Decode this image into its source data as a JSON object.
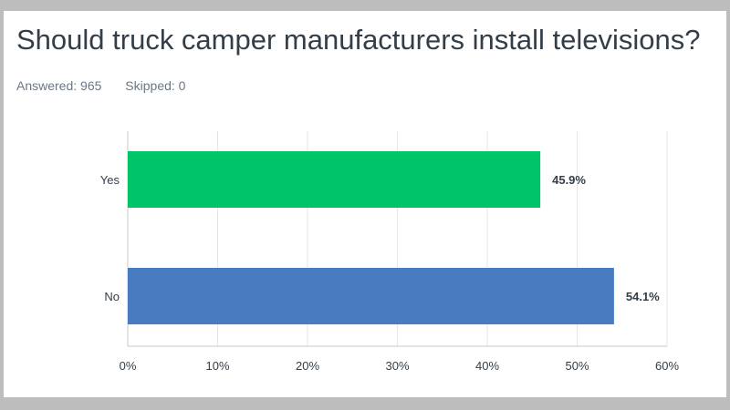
{
  "survey": {
    "title": "Should truck camper manufacturers install televisions?",
    "answered_label": "Answered: 965",
    "skipped_label": "Skipped: 0"
  },
  "colors": {
    "background": "#bdbdbd",
    "card": "#ffffff",
    "grid": "#e6e6e6",
    "axis": "#c8c8c8"
  },
  "chart_data": {
    "type": "bar",
    "orientation": "horizontal",
    "title": "Should truck camper manufacturers install televisions?",
    "categories": [
      "Yes",
      "No"
    ],
    "values": [
      45.9,
      54.1
    ],
    "value_labels": [
      "45.9%",
      "54.1%"
    ],
    "bar_colors": [
      "#00c468",
      "#487bbf"
    ],
    "xlim": [
      0,
      60
    ],
    "xticks": [
      0,
      10,
      20,
      30,
      40,
      50,
      60
    ],
    "xtick_labels": [
      "0%",
      "10%",
      "20%",
      "30%",
      "40%",
      "50%",
      "60%"
    ],
    "grid": true,
    "legend": false
  }
}
